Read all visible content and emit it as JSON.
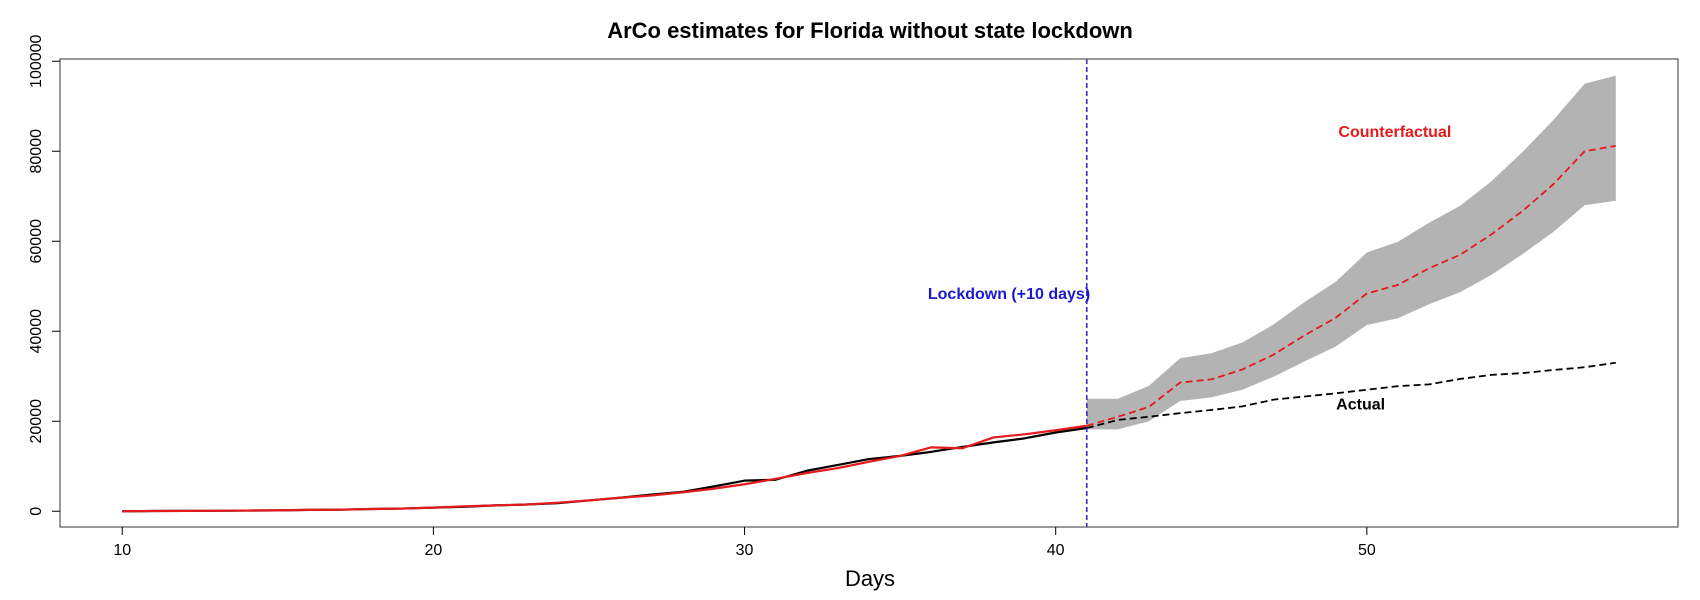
{
  "chart_data": {
    "type": "line",
    "title": "ArCo estimates for Florida without state lockdown",
    "xlabel": "Days",
    "ylabel": "",
    "xlim": [
      8,
      60
    ],
    "ylim": [
      -3500,
      100500
    ],
    "x_ticks": [
      10,
      20,
      30,
      40,
      50
    ],
    "y_ticks": [
      0,
      20000,
      40000,
      60000,
      80000,
      100000
    ],
    "grid": false,
    "intervention": {
      "x": 41,
      "label": "Lockdown (+10 days)",
      "color": "#1a1acc",
      "label_x": 38.5,
      "label_y": 48500
    },
    "series": [
      {
        "name": "Actual",
        "color": "#000000",
        "label_x": 49.8,
        "label_y": 24000,
        "x": [
          10,
          11,
          12,
          13,
          14,
          15,
          16,
          17,
          18,
          19,
          20,
          21,
          22,
          23,
          24,
          25,
          26,
          27,
          28,
          29,
          30,
          31,
          32,
          33,
          34,
          35,
          36,
          37,
          38,
          39,
          40,
          41,
          42,
          43,
          44,
          45,
          46,
          47,
          48,
          49,
          50,
          51,
          52,
          53,
          54,
          55,
          56,
          57,
          58
        ],
        "values": [
          0,
          50,
          80,
          100,
          150,
          200,
          300,
          350,
          500,
          600,
          800,
          1000,
          1300,
          1500,
          1800,
          2400,
          3000,
          3700,
          4300,
          5500,
          6800,
          7000,
          9000,
          10300,
          11600,
          12300,
          13200,
          14300,
          15300,
          16200,
          17500,
          18500,
          20300,
          21000,
          21800,
          22500,
          23300,
          24800,
          25500,
          26200,
          27000,
          27800,
          28200,
          29400,
          30300,
          30700,
          31400,
          32000,
          33000
        ]
      },
      {
        "name": "Counterfactual",
        "color": "#e41a1c",
        "label_x": 50.9,
        "label_y": 84500,
        "x": [
          10,
          11,
          12,
          13,
          14,
          15,
          16,
          17,
          18,
          19,
          20,
          21,
          22,
          23,
          24,
          25,
          26,
          27,
          28,
          29,
          30,
          31,
          32,
          33,
          34,
          35,
          36,
          37,
          38,
          39,
          40,
          41,
          42,
          43,
          44,
          45,
          46,
          47,
          48,
          49,
          50,
          51,
          52,
          53,
          54,
          55,
          56,
          57,
          58
        ],
        "values": [
          0,
          50,
          80,
          100,
          150,
          200,
          300,
          350,
          500,
          600,
          800,
          1100,
          1300,
          1500,
          1900,
          2400,
          3000,
          3500,
          4200,
          5000,
          6000,
          7200,
          8500,
          9600,
          11000,
          12300,
          14200,
          14000,
          16400,
          17100,
          18000,
          19000,
          21000,
          23200,
          28600,
          29300,
          31500,
          34800,
          39100,
          43000,
          48400,
          50300,
          54000,
          57000,
          61500,
          66700,
          72700,
          80000,
          81200
        ]
      }
    ],
    "band": {
      "name": "confidence interval",
      "color": "#b3b3b3",
      "x": [
        41,
        42,
        43,
        44,
        45,
        46,
        47,
        48,
        49,
        50,
        51,
        52,
        53,
        54,
        55,
        56,
        57,
        58
      ],
      "lower": [
        18200,
        18200,
        20000,
        24500,
        25300,
        27000,
        29900,
        33300,
        36600,
        41400,
        42900,
        46000,
        48700,
        52500,
        57100,
        62100,
        68000,
        69000
      ],
      "upper": [
        25000,
        25000,
        27900,
        34000,
        35100,
        37500,
        41500,
        46500,
        51000,
        57500,
        59900,
        64100,
        67900,
        73300,
        79800,
        87000,
        95000,
        96800
      ]
    }
  }
}
